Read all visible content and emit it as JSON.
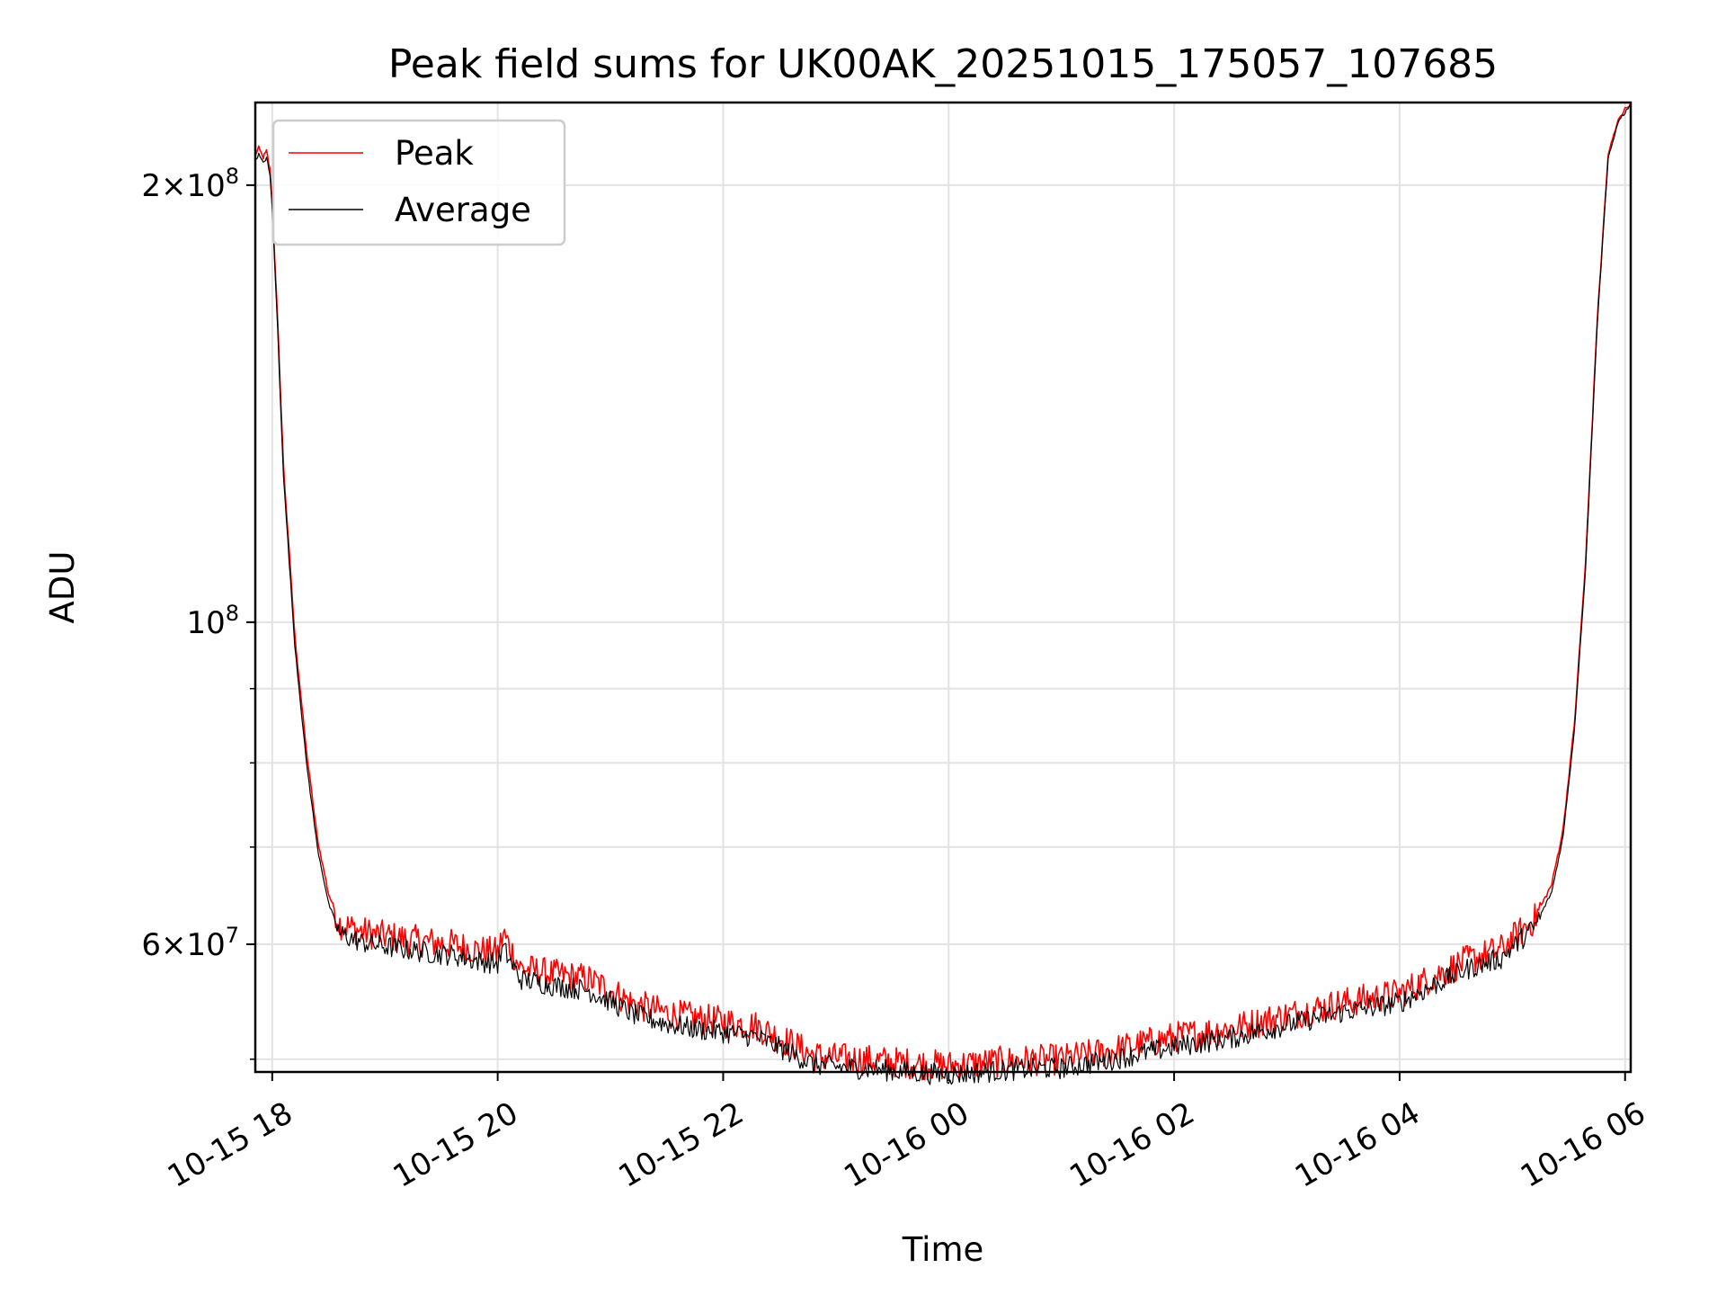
{
  "chart_data": {
    "type": "line",
    "title": "Peak field sums for UK00AK_20251015_175057_107685",
    "xlabel": "Time",
    "ylabel": "ADU",
    "y_scale": "log",
    "ylim": [
      49000000,
      228000000
    ],
    "xlim_hours": [
      -0.15,
      12.05
    ],
    "x_ticks": [
      {
        "hour": 0,
        "label": "10-15 18"
      },
      {
        "hour": 2,
        "label": "10-15 20"
      },
      {
        "hour": 4,
        "label": "10-15 22"
      },
      {
        "hour": 6,
        "label": "10-16 00"
      },
      {
        "hour": 8,
        "label": "10-16 02"
      },
      {
        "hour": 10,
        "label": "10-16 04"
      },
      {
        "hour": 12,
        "label": "10-16 06"
      }
    ],
    "y_major_ticks": [
      {
        "value": 60000000,
        "base": "6",
        "exp": "7"
      },
      {
        "value": 100000000,
        "base": "",
        "exp": "8"
      },
      {
        "value": 200000000,
        "base": "2",
        "exp": "8"
      }
    ],
    "y_minor_ticks": [
      50000000,
      70000000,
      80000000,
      90000000
    ],
    "grid": true,
    "legend": {
      "position": "top-left",
      "entries": [
        "Peak",
        "Average"
      ]
    },
    "series": [
      {
        "name": "Peak",
        "color": "#ff0000",
        "x_hours": [
          -0.15,
          -0.12,
          -0.08,
          -0.05,
          -0.02,
          0.0,
          0.05,
          0.1,
          0.2,
          0.3,
          0.4,
          0.5,
          0.6,
          0.8,
          1.0,
          1.2,
          1.4,
          1.6,
          1.8,
          2.0,
          2.05,
          2.2,
          2.5,
          2.8,
          3.0,
          3.2,
          3.5,
          3.8,
          4.0,
          4.3,
          4.6,
          4.8,
          5.0,
          5.2,
          5.5,
          5.8,
          6.0,
          6.3,
          6.6,
          7.0,
          7.4,
          8.0,
          8.5,
          9.0,
          9.5,
          10.0,
          10.3,
          10.6,
          10.9,
          11.0,
          11.2,
          11.35,
          11.45,
          11.55,
          11.65,
          11.75,
          11.85,
          11.95,
          12.05
        ],
        "values": [
          210000000,
          212000000,
          209000000,
          211000000,
          205000000,
          195000000,
          160000000,
          128000000,
          98000000,
          82000000,
          71000000,
          65000000,
          62000000,
          61200000,
          60800000,
          60500000,
          60200000,
          60000000,
          59500000,
          59200000,
          61000000,
          57800000,
          57200000,
          56800000,
          55800000,
          54600000,
          53800000,
          53300000,
          53100000,
          52700000,
          51300000,
          50300000,
          50100000,
          50000000,
          49800000,
          49600000,
          49500000,
          49700000,
          49900000,
          50000000,
          50600000,
          51800000,
          52500000,
          53600000,
          54700000,
          55500000,
          57000000,
          58500000,
          59500000,
          60500000,
          62500000,
          66000000,
          72000000,
          85000000,
          110000000,
          160000000,
          210000000,
          223000000,
          228000000
        ]
      },
      {
        "name": "Average",
        "color": "#000000",
        "x_hours": [
          -0.15,
          -0.12,
          -0.08,
          -0.05,
          -0.02,
          0.0,
          0.05,
          0.1,
          0.2,
          0.3,
          0.4,
          0.5,
          0.6,
          0.8,
          1.0,
          1.2,
          1.4,
          1.6,
          1.8,
          2.0,
          2.05,
          2.2,
          2.5,
          2.8,
          3.0,
          3.2,
          3.5,
          3.8,
          4.0,
          4.3,
          4.6,
          4.8,
          5.0,
          5.2,
          5.5,
          5.8,
          6.0,
          6.3,
          6.6,
          7.0,
          7.4,
          8.0,
          8.5,
          9.0,
          9.5,
          10.0,
          10.3,
          10.6,
          10.9,
          11.0,
          11.2,
          11.35,
          11.45,
          11.55,
          11.65,
          11.75,
          11.85,
          11.95,
          12.05
        ],
        "values": [
          208000000,
          210000000,
          207000000,
          209000000,
          203000000,
          193000000,
          158000000,
          126000000,
          96500000,
          80500000,
          70000000,
          64000000,
          61000000,
          60200000,
          59800000,
          59500000,
          59200000,
          59000000,
          58500000,
          58200000,
          59600000,
          56800000,
          56200000,
          55800000,
          54800000,
          53700000,
          52900000,
          52400000,
          52200000,
          51800000,
          50500000,
          49600000,
          49400000,
          49300000,
          49100000,
          48900000,
          48800000,
          49000000,
          49200000,
          49300000,
          49900000,
          51000000,
          51700000,
          52800000,
          53900000,
          54700000,
          56200000,
          57700000,
          58700000,
          59700000,
          61700000,
          65200000,
          71200000,
          84200000,
          109000000,
          159000000,
          209000000,
          222000000,
          227000000
        ]
      }
    ]
  }
}
